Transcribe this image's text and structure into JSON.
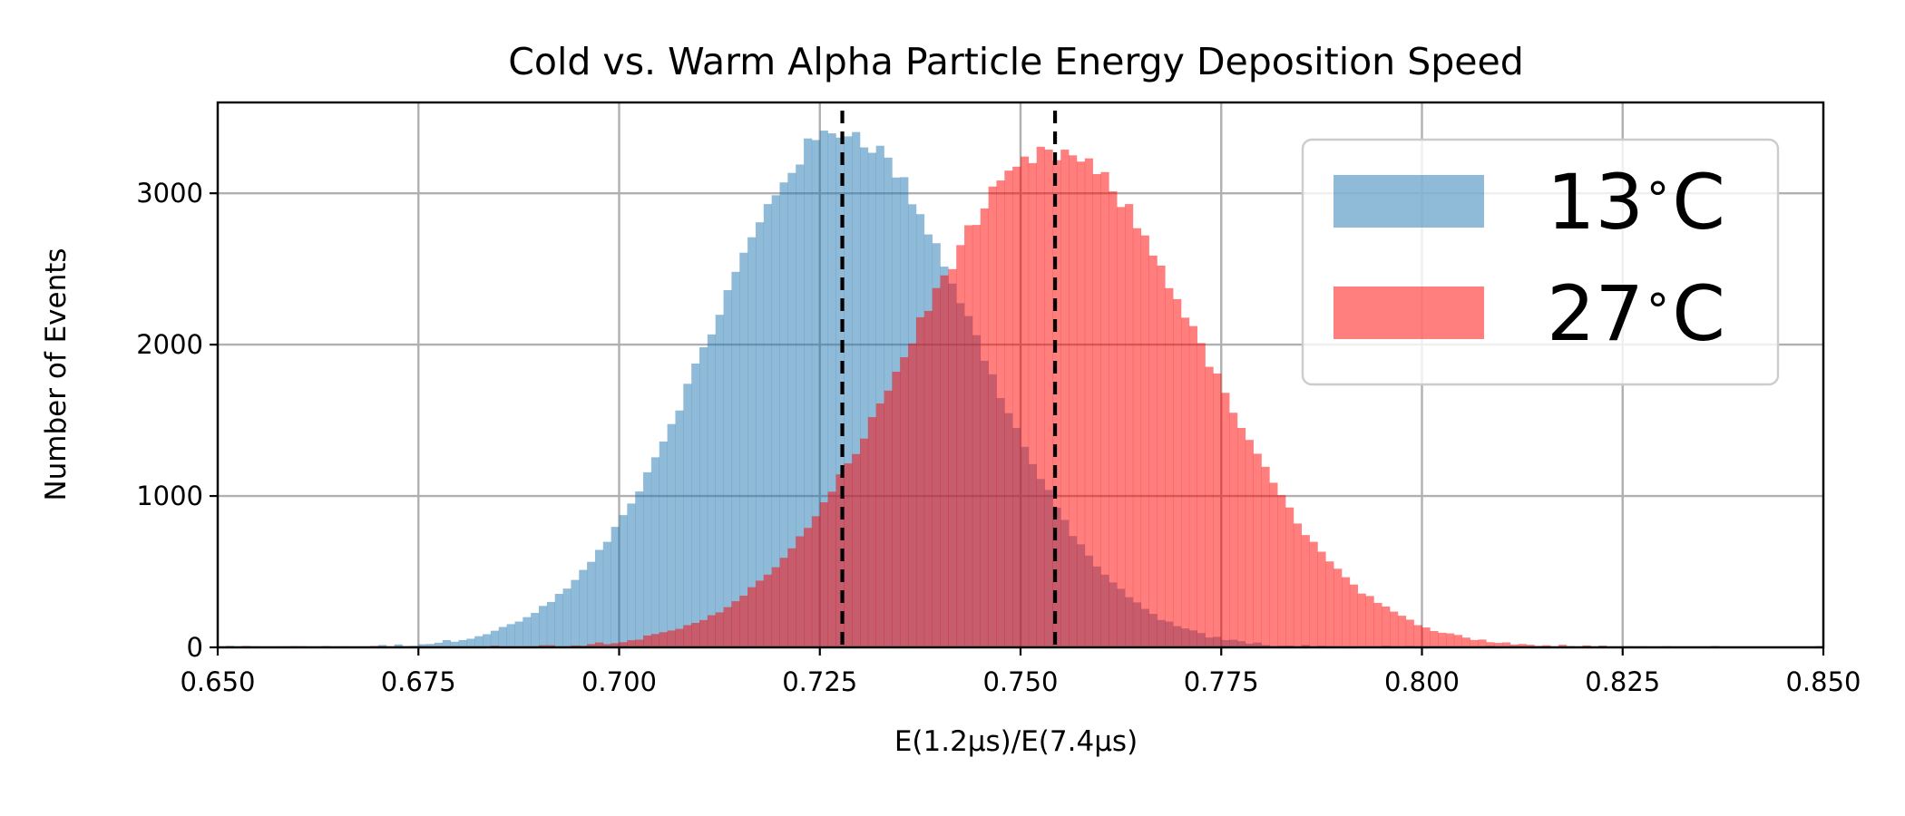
{
  "chart_data": {
    "type": "bar",
    "title": "Cold vs. Warm Alpha Particle Energy Deposition Speed",
    "xlabel": "E(1.2μs)/E(7.4μs)",
    "ylabel": "Number of Events",
    "xlim": [
      0.65,
      0.85
    ],
    "ylim": [
      0,
      3600
    ],
    "xticks": [
      0.65,
      0.675,
      0.7,
      0.725,
      0.75,
      0.775,
      0.8,
      0.825,
      0.85
    ],
    "xtick_labels": [
      "0.650",
      "0.675",
      "0.700",
      "0.725",
      "0.750",
      "0.775",
      "0.800",
      "0.825",
      "0.850"
    ],
    "yticks": [
      0,
      1000,
      2000,
      3000
    ],
    "ytick_labels": [
      "0",
      "1000",
      "2000",
      "3000"
    ],
    "grid": true,
    "legend_position": "top-right",
    "bin_width": 0.001,
    "series": [
      {
        "name": "13$^\\circ$C",
        "display_number": "13",
        "display_unit": "C",
        "color": "#1f77b4",
        "alpha": 0.5,
        "mean": 0.7278,
        "peak": 3410,
        "sigma": 0.0165
      },
      {
        "name": "27$^\\circ$C",
        "display_number": "27",
        "display_unit": "C",
        "color": "#ff0000",
        "alpha": 0.5,
        "mean": 0.7543,
        "peak": 3260,
        "sigma": 0.0183
      }
    ],
    "vlines": [
      {
        "x": 0.7278,
        "style": "dashed",
        "color": "#000000"
      },
      {
        "x": 0.7543,
        "style": "dashed",
        "color": "#000000"
      }
    ]
  }
}
